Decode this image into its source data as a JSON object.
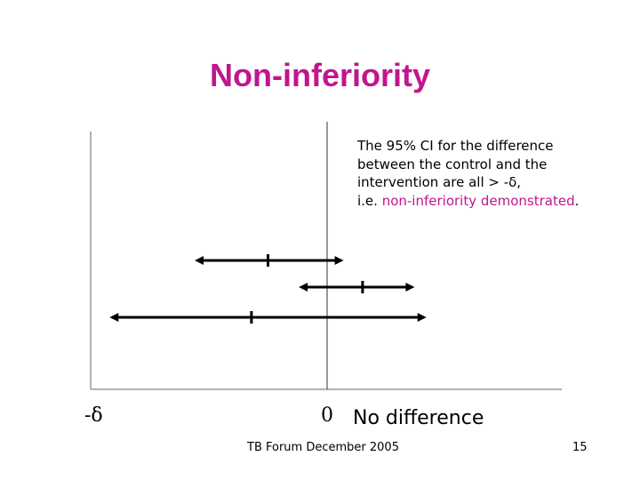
{
  "slide": {
    "title": "Non-inferiority",
    "note": {
      "line1": "The 95% CI for the difference",
      "line2": "between the control and the",
      "line3": "intervention are all > -δ,",
      "line4_prefix": "i.e. ",
      "line4_highlight": "non-inferiority demonstrated",
      "line4_suffix": "."
    },
    "no_difference_label": "No difference",
    "footer": "TB Forum December 2005",
    "page_number": "15",
    "colors": {
      "accent": "#c0168e",
      "ink": "#000000"
    }
  },
  "chart_data": {
    "type": "scatter",
    "title": "",
    "xlabel": "",
    "ylabel": "",
    "x_ticks": [
      {
        "value": -1,
        "label": "-δ"
      },
      {
        "value": 0,
        "label": "0"
      }
    ],
    "xlim": [
      -1,
      1
    ],
    "grid": false,
    "reference_line": 0,
    "intervals": [
      {
        "lower": -0.56,
        "estimate": -0.25,
        "upper": 0.07
      },
      {
        "lower": -0.12,
        "estimate": 0.15,
        "upper": 0.37
      },
      {
        "lower": -0.92,
        "estimate": -0.32,
        "upper": 0.42
      }
    ]
  }
}
